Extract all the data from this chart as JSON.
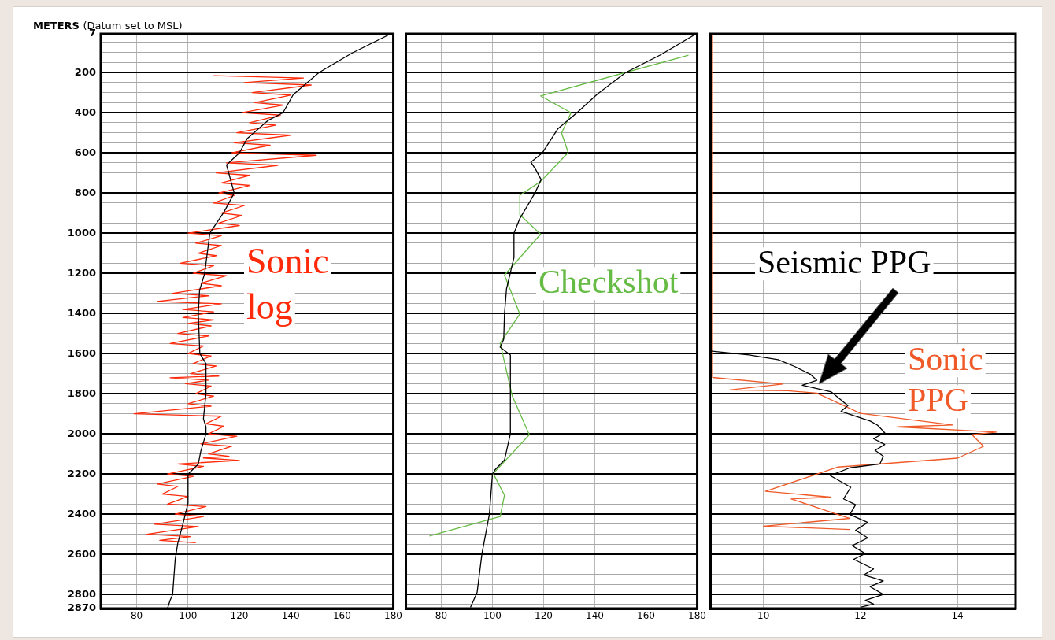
{
  "chart_data": [
    {
      "type": "line",
      "ylabel": "METERS (Datum set to MSL)",
      "xlim": [
        66,
        180
      ],
      "xticks": [
        80,
        100,
        120,
        140,
        160,
        180
      ],
      "ylim": [
        2870,
        7
      ],
      "grid": true,
      "yticks": [
        7,
        {
          "value": 50,
          "label": null
        },
        {
          "value": 100,
          "label": null
        },
        {
          "value": 150,
          "label": null
        },
        200,
        {
          "value": 250,
          "label": null
        },
        {
          "value": 300,
          "label": null
        },
        {
          "value": 350,
          "label": null
        },
        400,
        {
          "value": 450,
          "label": null
        },
        {
          "value": 500,
          "label": null
        },
        {
          "value": 550,
          "label": null
        },
        600,
        {
          "value": 650,
          "label": null
        },
        {
          "value": 700,
          "label": null
        },
        {
          "value": 750,
          "label": null
        },
        800,
        {
          "value": 850,
          "label": null
        },
        {
          "value": 900,
          "label": null
        },
        {
          "value": 950,
          "label": null
        },
        1000,
        {
          "value": 1050,
          "label": null
        },
        {
          "value": 1100,
          "label": null
        },
        {
          "value": 1150,
          "label": null
        },
        1200,
        {
          "value": 1250,
          "label": null
        },
        {
          "value": 1300,
          "label": null
        },
        {
          "value": 1350,
          "label": null
        },
        1400,
        {
          "value": 1450,
          "label": null
        },
        {
          "value": 1500,
          "label": null
        },
        {
          "value": 1550,
          "label": null
        },
        1600,
        {
          "value": 1650,
          "label": null
        },
        {
          "value": 1700,
          "label": null
        },
        {
          "value": 1750,
          "label": null
        },
        1800,
        {
          "value": 1850,
          "label": null
        },
        {
          "value": 1900,
          "label": null
        },
        {
          "value": 1950,
          "label": null
        },
        2000,
        {
          "value": 2050,
          "label": null
        },
        {
          "value": 2100,
          "label": null
        },
        {
          "value": 2150,
          "label": null
        },
        2200,
        {
          "value": 2250,
          "label": null
        },
        {
          "value": 2300,
          "label": null
        },
        {
          "value": 2350,
          "label": null
        },
        2400,
        {
          "value": 2450,
          "label": null
        },
        {
          "value": 2500,
          "label": null
        },
        {
          "value": 2550,
          "label": null
        },
        2600,
        {
          "value": 2650,
          "label": null
        },
        {
          "value": 2700,
          "label": null
        },
        {
          "value": 2750,
          "label": null
        },
        2800,
        {
          "value": 2850,
          "label": null
        },
        2870
      ],
      "series": [
        {
          "color": "#000000",
          "x": [
            179,
            164,
            151,
            141,
            137,
            131,
            123,
            120,
            115,
            118,
            114,
            108.5,
            106.5,
            104.5,
            104,
            104.6,
            107,
            107,
            106,
            107,
            107,
            105,
            104,
            100,
            100,
            98,
            96,
            95,
            94,
            93,
            92
          ],
          "values": [
            7,
            102,
            200,
            310,
            400,
            440,
            530,
            600,
            660,
            800,
            895,
            1000,
            1200,
            1285,
            1400,
            1600,
            1650,
            1800,
            1925,
            1965,
            2000,
            2085,
            2150,
            2200,
            2345,
            2450,
            2545,
            2625,
            2800,
            2830,
            2870
          ]
        },
        {
          "name": "Sonic log",
          "color": "#ff2a0a",
          "x": [
            110,
            145,
            122,
            148,
            125,
            140,
            126,
            137,
            121,
            136,
            124,
            134,
            119,
            140,
            118,
            132,
            117,
            150,
            115,
            135,
            111,
            124,
            113,
            124,
            112,
            118,
            110,
            122,
            113,
            121,
            112,
            120,
            100,
            113,
            103,
            113,
            104,
            111,
            97,
            110,
            102,
            115,
            105,
            113,
            94,
            108,
            88,
            113,
            98,
            110,
            98,
            110,
            100,
            109,
            96,
            108,
            93,
            106,
            100,
            109,
            102,
            111,
            101,
            112,
            93,
            108,
            99,
            109,
            103,
            110,
            100,
            109,
            79,
            113,
            107,
            114,
            108,
            119,
            105,
            117,
            108,
            116,
            106,
            120,
            96,
            106,
            92,
            102,
            88,
            96,
            90,
            100,
            92,
            107,
            95,
            106,
            87,
            104,
            84,
            101,
            89,
            103
          ],
          "values": [
            215,
            227,
            250,
            262,
            300,
            312,
            350,
            362,
            400,
            412,
            450,
            462,
            500,
            512,
            550,
            562,
            600,
            612,
            650,
            662,
            700,
            712,
            750,
            762,
            800,
            812,
            850,
            862,
            900,
            912,
            950,
            962,
            1000,
            1012,
            1050,
            1062,
            1100,
            1112,
            1150,
            1162,
            1200,
            1212,
            1250,
            1262,
            1300,
            1312,
            1340,
            1352,
            1380,
            1392,
            1420,
            1432,
            1450,
            1462,
            1500,
            1512,
            1550,
            1562,
            1600,
            1612,
            1650,
            1662,
            1700,
            1712,
            1720,
            1732,
            1750,
            1762,
            1800,
            1812,
            1850,
            1862,
            1900,
            1912,
            1950,
            1962,
            2000,
            2012,
            2050,
            2062,
            2100,
            2112,
            2120,
            2132,
            2150,
            2162,
            2200,
            2212,
            2250,
            2262,
            2300,
            2312,
            2350,
            2362,
            2400,
            2412,
            2450,
            2462,
            2500,
            2512,
            2530,
            2542
          ]
        }
      ]
    },
    {
      "type": "line",
      "tick_labels": "x",
      "xlim": [
        66,
        180
      ],
      "xticks": [
        80,
        100,
        120,
        140,
        160,
        180
      ],
      "ylim": [
        2870,
        7
      ],
      "grid": true,
      "yticks": [
        7,
        {
          "value": 50,
          "label": null
        },
        {
          "value": 100,
          "label": null
        },
        {
          "value": 150,
          "label": null
        },
        200,
        {
          "value": 250,
          "label": null
        },
        {
          "value": 300,
          "label": null
        },
        {
          "value": 350,
          "label": null
        },
        400,
        {
          "value": 450,
          "label": null
        },
        {
          "value": 500,
          "label": null
        },
        {
          "value": 550,
          "label": null
        },
        600,
        {
          "value": 650,
          "label": null
        },
        {
          "value": 700,
          "label": null
        },
        {
          "value": 750,
          "label": null
        },
        800,
        {
          "value": 850,
          "label": null
        },
        {
          "value": 900,
          "label": null
        },
        {
          "value": 950,
          "label": null
        },
        1000,
        {
          "value": 1050,
          "label": null
        },
        {
          "value": 1100,
          "label": null
        },
        {
          "value": 1150,
          "label": null
        },
        1200,
        {
          "value": 1250,
          "label": null
        },
        {
          "value": 1300,
          "label": null
        },
        {
          "value": 1350,
          "label": null
        },
        1400,
        {
          "value": 1450,
          "label": null
        },
        {
          "value": 1500,
          "label": null
        },
        {
          "value": 1550,
          "label": null
        },
        1600,
        {
          "value": 1650,
          "label": null
        },
        {
          "value": 1700,
          "label": null
        },
        {
          "value": 1750,
          "label": null
        },
        1800,
        {
          "value": 1850,
          "label": null
        },
        {
          "value": 1900,
          "label": null
        },
        {
          "value": 1950,
          "label": null
        },
        2000,
        {
          "value": 2050,
          "label": null
        },
        {
          "value": 2100,
          "label": null
        },
        {
          "value": 2150,
          "label": null
        },
        2200,
        {
          "value": 2250,
          "label": null
        },
        {
          "value": 2300,
          "label": null
        },
        {
          "value": 2350,
          "label": null
        },
        2400,
        {
          "value": 2450,
          "label": null
        },
        {
          "value": 2500,
          "label": null
        },
        {
          "value": 2550,
          "label": null
        },
        2600,
        {
          "value": 2650,
          "label": null
        },
        {
          "value": 2700,
          "label": null
        },
        {
          "value": 2750,
          "label": null
        },
        2800,
        {
          "value": 2850,
          "label": null
        },
        2870
      ],
      "series": [
        {
          "color": "#000000",
          "x": [
            179.6,
            165.5,
            152,
            141,
            133,
            125.5,
            119.5,
            115,
            117,
            119,
            116.6,
            110.7,
            108.4,
            108.4,
            105.5,
            104.7,
            104.4,
            103,
            107,
            107,
            104.7,
            101,
            100,
            98.8,
            95.9,
            94,
            91.4
          ],
          "values": [
            7,
            113,
            200,
            307,
            400,
            481,
            600,
            646,
            685,
            733,
            800,
            927,
            1000,
            1121,
            1277,
            1400,
            1529,
            1568,
            1607,
            2000,
            2130,
            2179,
            2200,
            2400,
            2596,
            2790,
            2864
          ]
        },
        {
          "name": "Checkshot",
          "color": "#66bb44",
          "x": [
            176.6,
            118.8,
            130.7,
            127,
            129.6,
            118.8,
            110.7,
            110.7,
            118.8,
            104.7,
            110.7,
            103,
            107.7,
            114.4,
            100.3,
            104.7,
            103,
            75.4
          ],
          "values": [
            113,
            316,
            400,
            501,
            598,
            743,
            811,
            908,
            1005,
            1209,
            1403,
            1548,
            1810,
            2004,
            2198,
            2305,
            2412,
            2509
          ]
        }
      ]
    },
    {
      "type": "line",
      "tick_labels": "x",
      "xlim": [
        8.9,
        15.2
      ],
      "xticks": [
        10,
        12,
        14
      ],
      "ylim": [
        2870,
        7
      ],
      "grid": true,
      "yticks": [
        7,
        {
          "value": 50,
          "label": null
        },
        {
          "value": 100,
          "label": null
        },
        {
          "value": 150,
          "label": null
        },
        200,
        {
          "value": 250,
          "label": null
        },
        {
          "value": 300,
          "label": null
        },
        {
          "value": 350,
          "label": null
        },
        400,
        {
          "value": 450,
          "label": null
        },
        {
          "value": 500,
          "label": null
        },
        {
          "value": 550,
          "label": null
        },
        600,
        {
          "value": 650,
          "label": null
        },
        {
          "value": 700,
          "label": null
        },
        {
          "value": 750,
          "label": null
        },
        800,
        {
          "value": 850,
          "label": null
        },
        {
          "value": 900,
          "label": null
        },
        {
          "value": 950,
          "label": null
        },
        1000,
        {
          "value": 1050,
          "label": null
        },
        {
          "value": 1100,
          "label": null
        },
        {
          "value": 1150,
          "label": null
        },
        1200,
        {
          "value": 1250,
          "label": null
        },
        {
          "value": 1300,
          "label": null
        },
        {
          "value": 1350,
          "label": null
        },
        1400,
        {
          "value": 1450,
          "label": null
        },
        {
          "value": 1500,
          "label": null
        },
        {
          "value": 1550,
          "label": null
        },
        1600,
        {
          "value": 1650,
          "label": null
        },
        {
          "value": 1700,
          "label": null
        },
        {
          "value": 1750,
          "label": null
        },
        1800,
        {
          "value": 1850,
          "label": null
        },
        {
          "value": 1900,
          "label": null
        },
        {
          "value": 1950,
          "label": null
        },
        2000,
        {
          "value": 2050,
          "label": null
        },
        {
          "value": 2100,
          "label": null
        },
        {
          "value": 2150,
          "label": null
        },
        2200,
        {
          "value": 2250,
          "label": null
        },
        {
          "value": 2300,
          "label": null
        },
        {
          "value": 2350,
          "label": null
        },
        2400,
        {
          "value": 2450,
          "label": null
        },
        {
          "value": 2500,
          "label": null
        },
        {
          "value": 2550,
          "label": null
        },
        2600,
        {
          "value": 2650,
          "label": null
        },
        {
          "value": 2700,
          "label": null
        },
        {
          "value": 2750,
          "label": null
        },
        2800,
        {
          "value": 2850,
          "label": null
        },
        2870
      ],
      "series": [
        {
          "name": "Seismic PPG",
          "color": "#000000",
          "x": [
            8.9,
            9.7,
            10.3,
            10.65,
            10.97,
            11.1,
            10.8,
            11.05,
            11.4,
            11.74,
            11.6,
            12.2,
            12.35,
            12.5,
            12.27,
            12.5,
            12.3,
            12.47,
            12.4,
            11.78,
            11.38,
            11.8,
            11.65,
            11.9,
            11.78,
            12.15,
            11.9,
            12.15,
            11.83,
            12.1,
            11.86,
            12.27,
            12.07,
            12.47,
            12.2,
            12.47,
            12.1,
            12.27,
            12
          ],
          "values": [
            1587,
            1607,
            1630,
            1665,
            1704,
            1733,
            1758,
            1771,
            1791,
            1859,
            1888,
            1936,
            1956,
            1994,
            2024,
            2053,
            2082,
            2111,
            2150,
            2169,
            2208,
            2266,
            2324,
            2353,
            2402,
            2441,
            2480,
            2518,
            2557,
            2596,
            2625,
            2673,
            2703,
            2732,
            2761,
            2800,
            2829,
            2848,
            2864
          ]
        },
        {
          "name": "Sonic PPG",
          "color": "#f05a28",
          "x": [
            8.95,
            8.95,
            10.4,
            9.3,
            10.5,
            11.1,
            12,
            13.9,
            12.76,
            14.8,
            14.3,
            14.54,
            14,
            11.54,
            10.04,
            11.38,
            10.57,
            11.78,
            10,
            11.78
          ],
          "values": [
            7,
            1719,
            1752,
            1781,
            1785,
            1797,
            1898,
            1956,
            1965,
            1991,
            2004,
            2062,
            2121,
            2165,
            2286,
            2315,
            2324,
            2421,
            2460,
            2476
          ]
        }
      ]
    }
  ]
}
